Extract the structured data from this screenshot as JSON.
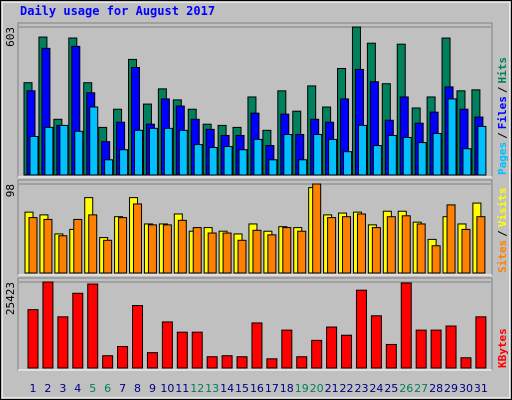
{
  "chart_data": [
    {
      "type": "bar",
      "title": "Daily usage for August 2017",
      "ylim": [
        0,
        603
      ],
      "yticks": [
        603
      ],
      "legend_separator": "/",
      "series": [
        {
          "name": "Hits",
          "color": "#00805c",
          "values": [
            376,
            562,
            227,
            558,
            376,
            194,
            268,
            471,
            289,
            351,
            306,
            268,
            207,
            202,
            194,
            318,
            182,
            343,
            260,
            363,
            277,
            434,
            603,
            537,
            372,
            533,
            273,
            318,
            558,
            343,
            347
          ]
        },
        {
          "name": "Files",
          "color": "#0000ff",
          "values": [
            343,
            516,
            202,
            524,
            335,
            136,
            215,
            438,
            207,
            310,
            281,
            227,
            186,
            161,
            161,
            252,
            120,
            248,
            165,
            227,
            215,
            310,
            430,
            380,
            223,
            318,
            211,
            256,
            359,
            268,
            236
          ]
        },
        {
          "name": "Pages",
          "color": "#00c0ff",
          "values": [
            157,
            194,
            202,
            178,
            277,
            62,
            103,
            182,
            190,
            190,
            182,
            124,
            112,
            116,
            103,
            145,
            62,
            165,
            62,
            165,
            145,
            95,
            202,
            120,
            161,
            153,
            132,
            169,
            310,
            107,
            198
          ]
        }
      ]
    },
    {
      "type": "bar",
      "ylim": [
        0,
        98
      ],
      "yticks": [
        98
      ],
      "legend_separator": "/",
      "series": [
        {
          "name": "Visits",
          "color": "#ffff00",
          "values": [
            67,
            64,
            43,
            48,
            83,
            39,
            62,
            83,
            54,
            54,
            65,
            46,
            50,
            46,
            43,
            54,
            46,
            51,
            50,
            94,
            64,
            66,
            67,
            53,
            68,
            68,
            56,
            37,
            62,
            54,
            77
          ]
        },
        {
          "name": "Sites",
          "color": "#ff8000",
          "values": [
            61,
            59,
            41,
            59,
            64,
            36,
            61,
            76,
            53,
            53,
            58,
            50,
            44,
            44,
            36,
            47,
            42,
            50,
            46,
            98,
            61,
            62,
            65,
            50,
            62,
            63,
            54,
            30,
            75,
            48,
            62
          ]
        }
      ]
    },
    {
      "type": "bar",
      "ylim": [
        0,
        25423
      ],
      "yticks": [
        25423
      ],
      "categories": [
        "1",
        "2",
        "3",
        "4",
        "5",
        "6",
        "7",
        "8",
        "9",
        "10",
        "11",
        "12",
        "13",
        "14",
        "15",
        "16",
        "17",
        "18",
        "19",
        "20",
        "21",
        "22",
        "23",
        "24",
        "25",
        "26",
        "27",
        "28",
        "29",
        "30",
        "31"
      ],
      "category_colors": [
        "#000080",
        "#000080",
        "#000080",
        "#000080",
        "#00805c",
        "#00805c",
        "#000080",
        "#000080",
        "#000080",
        "#000080",
        "#000080",
        "#00805c",
        "#00805c",
        "#000080",
        "#000080",
        "#000080",
        "#000080",
        "#000080",
        "#00805c",
        "#00805c",
        "#000080",
        "#000080",
        "#000080",
        "#000080",
        "#000080",
        "#00805c",
        "#00805c",
        "#000080",
        "#000080",
        "#000080",
        "#000080"
      ],
      "series": [
        {
          "name": "KBytes",
          "color": "#ff0000",
          "values": [
            17250,
            25423,
            15130,
            22090,
            24820,
            3630,
            6360,
            18460,
            4540,
            13620,
            10590,
            10590,
            3330,
            3630,
            3330,
            13320,
            2720,
            11200,
            3330,
            8170,
            12110,
            9690,
            23000,
            15440,
            6960,
            25120,
            11200,
            11200,
            12410,
            3030,
            15130
          ]
        }
      ]
    }
  ]
}
